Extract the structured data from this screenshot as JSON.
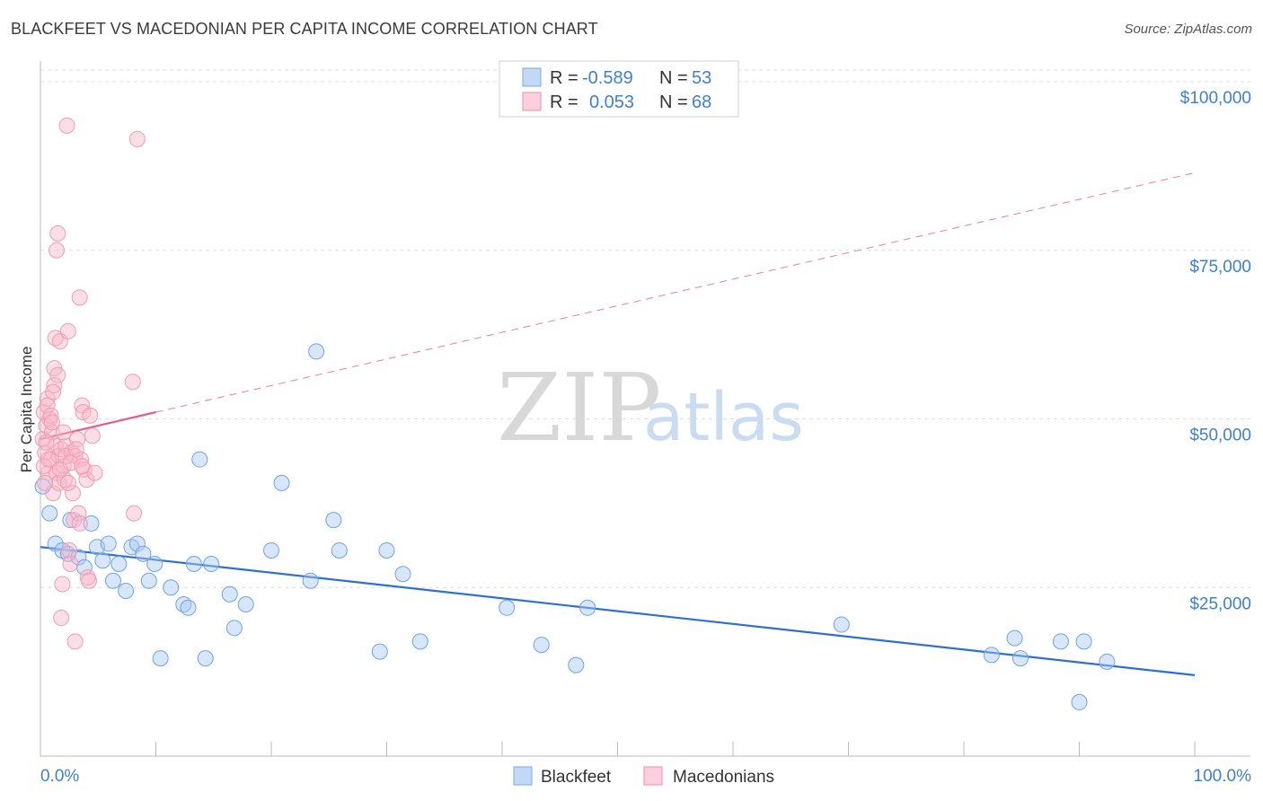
{
  "title": "BLACKFEET VS MACEDONIAN PER CAPITA INCOME CORRELATION CHART",
  "source": "Source: ZipAtlas.com",
  "watermark": {
    "zip": "ZIP",
    "atlas": "atlas"
  },
  "legend_box": {
    "rows": [
      {
        "r_label": "R =",
        "r_value": "-0.589",
        "n_label": "N =",
        "n_value": "53",
        "color": "#a9c8f2"
      },
      {
        "r_label": "R =",
        "r_value": "0.053",
        "n_label": "N =",
        "n_value": "68",
        "color": "#f6b8c8"
      }
    ]
  },
  "bottom_legend": [
    {
      "label": "Blackfeet",
      "color": "#a9c8f2"
    },
    {
      "label": "Macedonians",
      "color": "#f6b8c8"
    }
  ],
  "chart_data": {
    "type": "scatter",
    "title": "BLACKFEET VS MACEDONIAN PER CAPITA INCOME CORRELATION CHART",
    "xlabel": "",
    "ylabel": "Per Capita Income",
    "xlim": [
      0,
      100
    ],
    "ylim": [
      0,
      102000
    ],
    "x_tick_labels": [
      "0.0%",
      "100.0%"
    ],
    "y_ticks": [
      25000,
      50000,
      75000,
      100000
    ],
    "y_tick_labels": [
      "$25,000",
      "$50,000",
      "$75,000",
      "$100,000"
    ],
    "grid": true,
    "legend_position": "top-center",
    "series": [
      {
        "name": "Blackfeet",
        "color": "#6fa3e3",
        "trend": {
          "x": [
            0,
            100
          ],
          "y": [
            31000,
            12000
          ],
          "style": "solid",
          "color": "#2e6fd4"
        },
        "points": [
          [
            0.2,
            40000
          ],
          [
            0.8,
            36000
          ],
          [
            1.3,
            31500
          ],
          [
            1.9,
            30500
          ],
          [
            2.4,
            30000
          ],
          [
            2.6,
            35000
          ],
          [
            3.3,
            29500
          ],
          [
            3.8,
            28000
          ],
          [
            4.4,
            34500
          ],
          [
            4.9,
            31000
          ],
          [
            5.4,
            29000
          ],
          [
            5.9,
            31500
          ],
          [
            6.3,
            26000
          ],
          [
            6.8,
            28500
          ],
          [
            7.4,
            24500
          ],
          [
            7.9,
            31000
          ],
          [
            8.4,
            31500
          ],
          [
            8.9,
            30000
          ],
          [
            9.4,
            26000
          ],
          [
            9.9,
            28500
          ],
          [
            10.4,
            14500
          ],
          [
            11.3,
            25000
          ],
          [
            12.4,
            22500
          ],
          [
            12.8,
            22000
          ],
          [
            13.3,
            28500
          ],
          [
            13.8,
            44000
          ],
          [
            14.3,
            14500
          ],
          [
            14.8,
            28500
          ],
          [
            16.4,
            24000
          ],
          [
            16.8,
            19000
          ],
          [
            17.8,
            22500
          ],
          [
            20.0,
            30500
          ],
          [
            20.9,
            40500
          ],
          [
            23.4,
            26000
          ],
          [
            23.9,
            60000
          ],
          [
            25.4,
            35000
          ],
          [
            25.9,
            30500
          ],
          [
            29.4,
            15500
          ],
          [
            30.0,
            30500
          ],
          [
            31.4,
            27000
          ],
          [
            32.9,
            17000
          ],
          [
            40.4,
            22000
          ],
          [
            43.4,
            16500
          ],
          [
            46.4,
            13500
          ],
          [
            47.4,
            22000
          ],
          [
            69.4,
            19500
          ],
          [
            82.4,
            15000
          ],
          [
            84.4,
            17500
          ],
          [
            84.9,
            14500
          ],
          [
            88.4,
            17000
          ],
          [
            90.4,
            17000
          ],
          [
            92.4,
            14000
          ],
          [
            90.0,
            8000
          ]
        ]
      },
      {
        "name": "Macedonians",
        "color": "#f29bb3",
        "trend": {
          "x": [
            0,
            10
          ],
          "y": [
            47000,
            51000
          ],
          "style": "solid",
          "color": "#e45e88",
          "extended": {
            "x": [
              10,
              100
            ],
            "y": [
              51000,
              86500
            ],
            "style": "dashed"
          }
        },
        "points": [
          [
            0.2,
            47000
          ],
          [
            0.3,
            51000
          ],
          [
            0.4,
            45000
          ],
          [
            0.5,
            49000
          ],
          [
            0.6,
            53000
          ],
          [
            0.7,
            42000
          ],
          [
            0.8,
            50000
          ],
          [
            0.9,
            44000
          ],
          [
            1.0,
            48000
          ],
          [
            1.1,
            39000
          ],
          [
            1.2,
            55000
          ],
          [
            1.2,
            57500
          ],
          [
            1.3,
            62000
          ],
          [
            1.3,
            46000
          ],
          [
            1.4,
            42000
          ],
          [
            1.4,
            75000
          ],
          [
            1.5,
            77500
          ],
          [
            1.6,
            44500
          ],
          [
            1.6,
            40500
          ],
          [
            1.7,
            61500
          ],
          [
            1.8,
            45500
          ],
          [
            1.9,
            25500
          ],
          [
            1.8,
            20500
          ],
          [
            2.0,
            43000
          ],
          [
            2.1,
            41000
          ],
          [
            2.2,
            46000
          ],
          [
            2.3,
            93500
          ],
          [
            2.4,
            63000
          ],
          [
            2.5,
            30500
          ],
          [
            2.6,
            28500
          ],
          [
            2.7,
            45000
          ],
          [
            2.8,
            39000
          ],
          [
            2.9,
            35000
          ],
          [
            3.0,
            44500
          ],
          [
            3.0,
            17000
          ],
          [
            3.2,
            47000
          ],
          [
            3.3,
            36000
          ],
          [
            3.4,
            68000
          ],
          [
            3.4,
            34500
          ],
          [
            3.5,
            44000
          ],
          [
            3.6,
            52000
          ],
          [
            3.7,
            51000
          ],
          [
            3.8,
            42500
          ],
          [
            4.0,
            41000
          ],
          [
            4.1,
            26500
          ],
          [
            4.2,
            26000
          ],
          [
            4.3,
            50500
          ],
          [
            4.5,
            47500
          ],
          [
            4.7,
            42000
          ],
          [
            8.0,
            55500
          ],
          [
            8.1,
            36000
          ],
          [
            8.4,
            91500
          ],
          [
            0.3,
            43000
          ],
          [
            0.5,
            46500
          ],
          [
            0.6,
            52000
          ],
          [
            0.7,
            44000
          ],
          [
            0.9,
            50500
          ],
          [
            1.0,
            49500
          ],
          [
            1.1,
            54000
          ],
          [
            1.5,
            56500
          ],
          [
            1.7,
            42500
          ],
          [
            2.0,
            48000
          ],
          [
            2.2,
            44500
          ],
          [
            2.4,
            40500
          ],
          [
            2.6,
            43500
          ],
          [
            3.1,
            45500
          ],
          [
            3.6,
            43000
          ],
          [
            0.4,
            40500
          ]
        ]
      }
    ]
  }
}
